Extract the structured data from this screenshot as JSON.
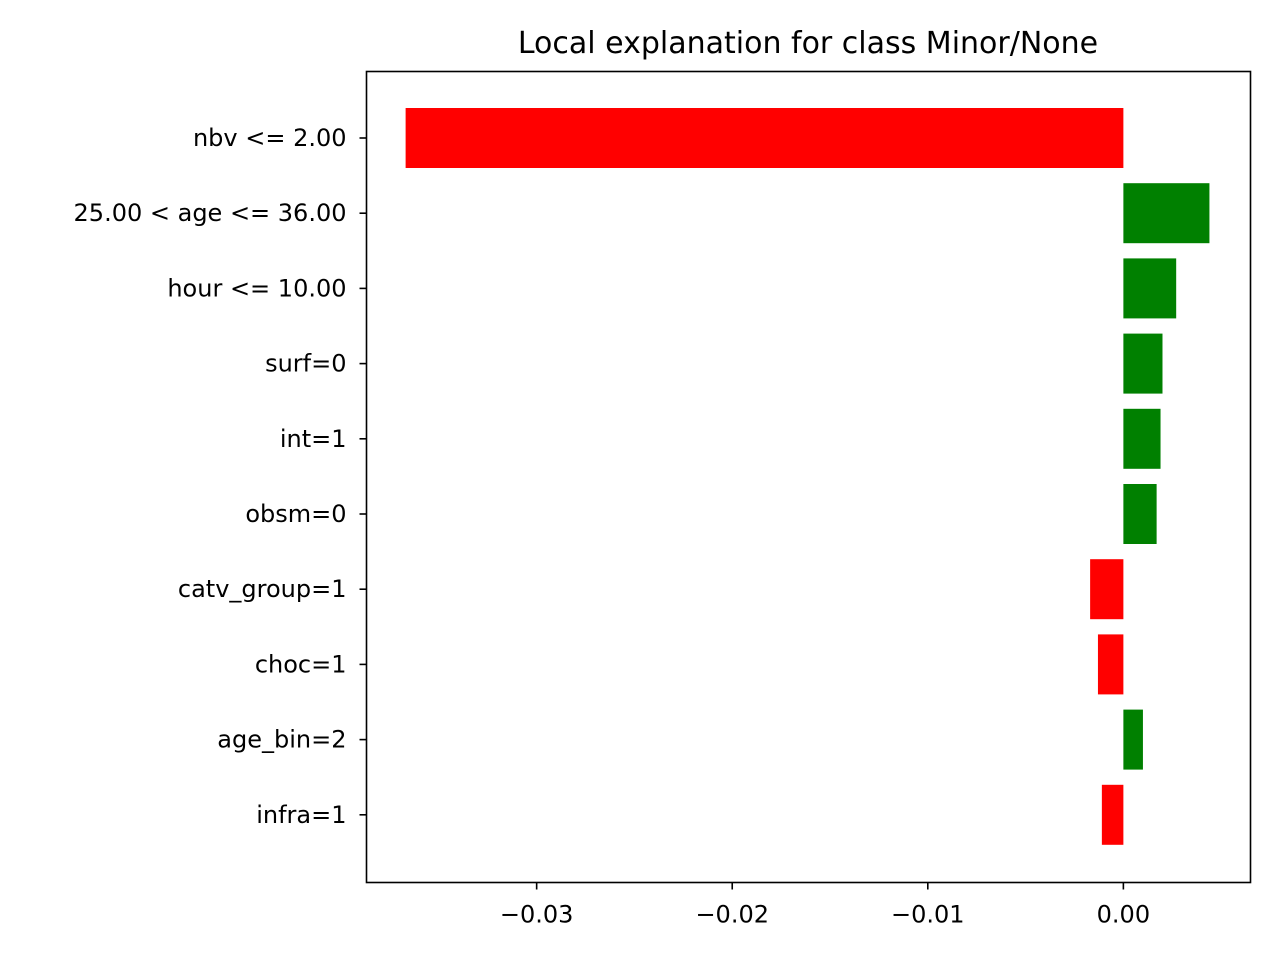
{
  "chart_data": {
    "type": "bar",
    "orientation": "horizontal",
    "title": "Local explanation for class Minor/None",
    "xlabel": "",
    "ylabel": "",
    "xlim": [
      -0.0387,
      0.0065
    ],
    "grid": false,
    "legend": "none",
    "x_ticks": [
      {
        "value": -0.03,
        "label": "−0.03"
      },
      {
        "value": -0.02,
        "label": "−0.02"
      },
      {
        "value": -0.01,
        "label": "−0.01"
      },
      {
        "value": 0.0,
        "label": "0.00"
      }
    ],
    "colors": {
      "positive": "#008000",
      "negative": "#ff0000"
    },
    "bars": [
      {
        "label": "nbv <= 2.00",
        "value": -0.0367
      },
      {
        "label": "25.00 < age <= 36.00",
        "value": 0.0044
      },
      {
        "label": "hour <= 10.00",
        "value": 0.0027
      },
      {
        "label": "surf=0",
        "value": 0.002
      },
      {
        "label": "int=1",
        "value": 0.0019
      },
      {
        "label": "obsm=0",
        "value": 0.0017
      },
      {
        "label": "catv_group=1",
        "value": -0.0017
      },
      {
        "label": "choc=1",
        "value": -0.0013
      },
      {
        "label": "age_bin=2",
        "value": 0.001
      },
      {
        "label": "infra=1",
        "value": -0.0011
      }
    ]
  }
}
